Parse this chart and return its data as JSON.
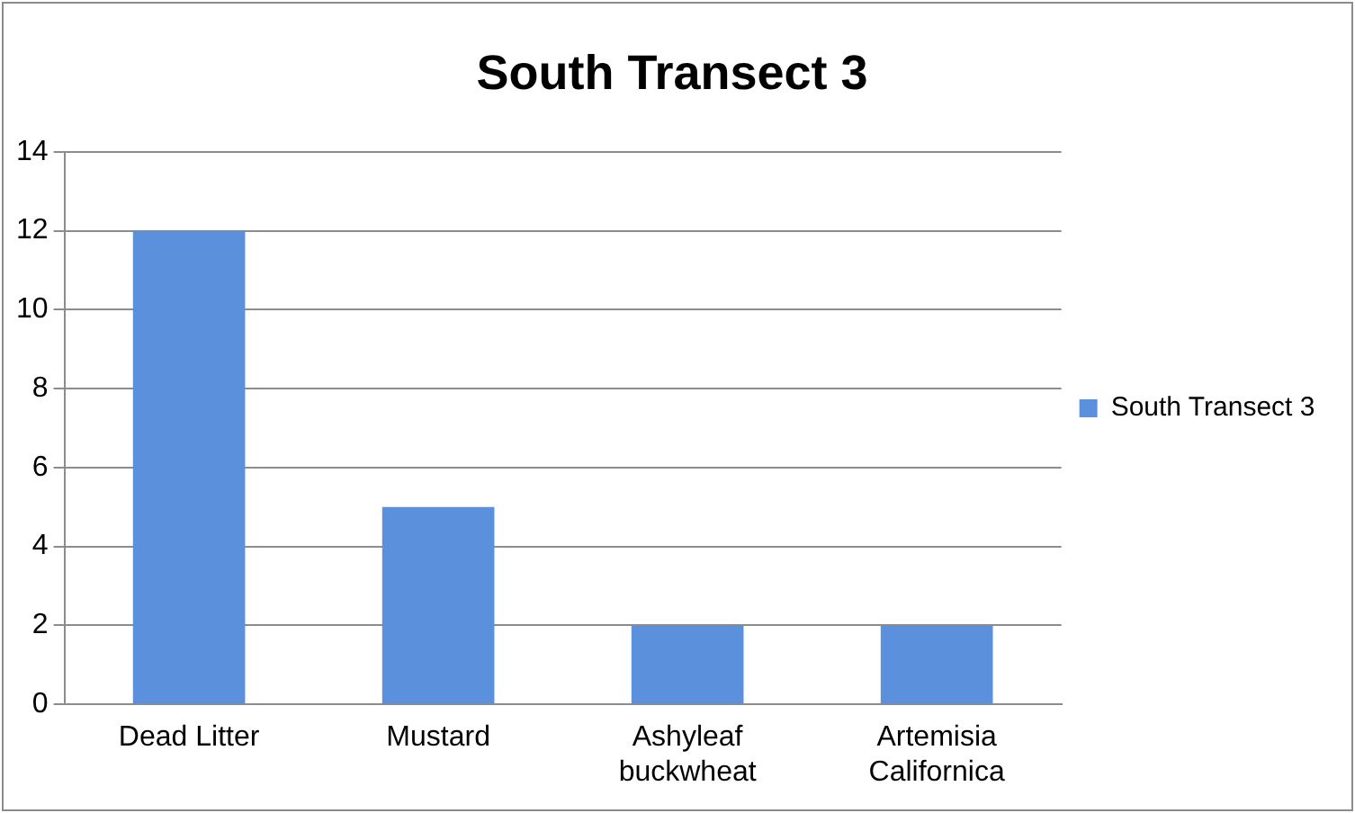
{
  "chart_data": {
    "type": "bar",
    "title": "South Transect 3",
    "categories": [
      "Dead Litter",
      "Mustard",
      "Ashyleaf buckwheat",
      "Artemisia Californica"
    ],
    "series": [
      {
        "name": "South Transect 3",
        "color": "#5b90dc",
        "values": [
          12,
          5,
          2,
          2
        ]
      }
    ],
    "ylim": [
      0,
      14
    ],
    "yticks": [
      0,
      2,
      4,
      6,
      8,
      10,
      12,
      14
    ],
    "grid": "y",
    "legend": "right"
  }
}
